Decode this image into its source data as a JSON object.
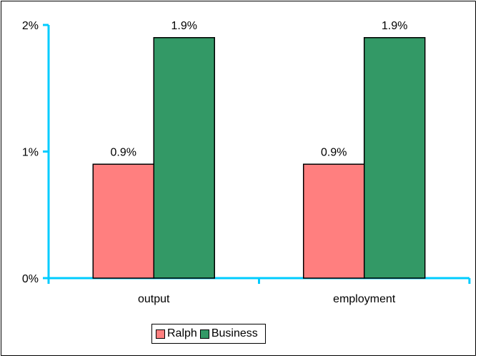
{
  "chart_data": {
    "type": "bar",
    "categories": [
      "output",
      "employment"
    ],
    "series": [
      {
        "name": "Ralph",
        "values": [
          0.9,
          0.9
        ],
        "labels": [
          "0.9%",
          "0.9%"
        ],
        "color": "#ff7f7f"
      },
      {
        "name": "Business",
        "values": [
          1.9,
          1.9
        ],
        "labels": [
          "1.9%",
          "1.9%"
        ],
        "color": "#339966"
      }
    ],
    "yticks": [
      {
        "value": 0,
        "label": "0%"
      },
      {
        "value": 1,
        "label": "1%"
      },
      {
        "value": 2,
        "label": "2%"
      }
    ],
    "ylim": [
      0,
      2
    ],
    "axis_color": "#00ccff",
    "legend_position": "bottom-center",
    "grid": false
  }
}
